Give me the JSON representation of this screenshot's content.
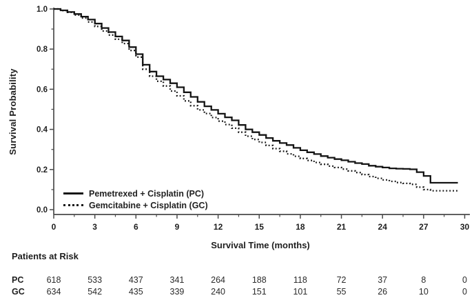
{
  "chart_data": {
    "type": "line",
    "subtype": "kaplan-meier-step",
    "title": "",
    "xlabel": "Survival Time (months)",
    "ylabel": "Survival Probability",
    "xlim": [
      0,
      30
    ],
    "ylim": [
      0.0,
      1.0
    ],
    "grid": "off",
    "axis_color": "#4a4a4a",
    "curve_color": "#141414",
    "xticks": {
      "major": [
        {
          "value": 0,
          "label": "0"
        },
        {
          "value": 3,
          "label": "3"
        },
        {
          "value": 6,
          "label": "6"
        },
        {
          "value": 9,
          "label": "9"
        },
        {
          "value": 12,
          "label": "12"
        },
        {
          "value": 15,
          "label": "15"
        },
        {
          "value": 18,
          "label": "18"
        },
        {
          "value": 21,
          "label": "21"
        },
        {
          "value": 24,
          "label": "24"
        },
        {
          "value": 27,
          "label": "27"
        },
        {
          "value": 30,
          "label": "30"
        }
      ],
      "minor": [
        1.5,
        4.5,
        7.5,
        10.5,
        13.5,
        16.5,
        19.5,
        22.5,
        25.5,
        28.5
      ]
    },
    "yticks": {
      "major": [
        {
          "value": 1.0,
          "label": "1.0"
        },
        {
          "value": 0.8,
          "label": "0.8"
        },
        {
          "value": 0.6,
          "label": "0.6"
        },
        {
          "value": 0.4,
          "label": "0.4"
        },
        {
          "value": 0.2,
          "label": "0.2"
        },
        {
          "value": 0.0,
          "label": "0.0"
        }
      ],
      "minor": [
        0.1,
        0.3,
        0.5,
        0.7,
        0.9
      ]
    },
    "x_months": [
      0,
      0.5,
      1,
      1.5,
      2,
      2.5,
      3,
      3.5,
      4,
      4.5,
      5,
      5.5,
      6,
      6.5,
      7,
      7.5,
      8,
      8.5,
      9,
      9.5,
      10,
      10.5,
      11,
      11.5,
      12,
      12.5,
      13,
      13.5,
      14,
      14.5,
      15,
      15.5,
      16,
      16.5,
      17,
      17.5,
      18,
      18.5,
      19,
      19.5,
      20,
      20.5,
      21,
      21.5,
      22,
      22.5,
      23,
      23.5,
      24,
      24.5,
      25,
      25.5,
      26,
      26.5,
      27,
      27.5,
      28,
      28.5,
      29,
      29.5
    ],
    "series": [
      {
        "name": "Pemetrexed + Cisplatin (PC)",
        "short": "PC",
        "line_style": "solid",
        "values": [
          1.0,
          0.993,
          0.985,
          0.975,
          0.962,
          0.947,
          0.927,
          0.905,
          0.885,
          0.863,
          0.843,
          0.81,
          0.775,
          0.722,
          0.688,
          0.665,
          0.648,
          0.63,
          0.61,
          0.585,
          0.562,
          0.537,
          0.515,
          0.497,
          0.478,
          0.46,
          0.445,
          0.422,
          0.4,
          0.386,
          0.372,
          0.357,
          0.343,
          0.332,
          0.322,
          0.308,
          0.296,
          0.286,
          0.277,
          0.267,
          0.259,
          0.252,
          0.246,
          0.239,
          0.232,
          0.227,
          0.219,
          0.214,
          0.21,
          0.206,
          0.204,
          0.203,
          0.201,
          0.187,
          0.168,
          0.134,
          0.134,
          0.134,
          0.134,
          0.134
        ]
      },
      {
        "name": "Gemcitabine + Cisplatin (GC)",
        "short": "GC",
        "line_style": "dotted",
        "values": [
          1.0,
          0.992,
          0.983,
          0.97,
          0.955,
          0.935,
          0.913,
          0.89,
          0.87,
          0.849,
          0.828,
          0.793,
          0.76,
          0.7,
          0.665,
          0.64,
          0.616,
          0.591,
          0.567,
          0.542,
          0.518,
          0.497,
          0.479,
          0.459,
          0.441,
          0.424,
          0.406,
          0.386,
          0.366,
          0.35,
          0.335,
          0.32,
          0.304,
          0.291,
          0.278,
          0.266,
          0.255,
          0.245,
          0.235,
          0.226,
          0.217,
          0.21,
          0.202,
          0.193,
          0.185,
          0.175,
          0.165,
          0.156,
          0.148,
          0.141,
          0.135,
          0.131,
          0.126,
          0.112,
          0.1,
          0.094,
          0.094,
          0.094,
          0.094,
          0.094
        ]
      }
    ],
    "legend": {
      "position": "lower-left-inside",
      "items": [
        {
          "label": "Pemetrexed + Cisplatin (PC)",
          "line_style": "solid"
        },
        {
          "label": "Gemcitabine + Cisplatin (GC)",
          "line_style": "dotted"
        }
      ]
    }
  },
  "risk_table": {
    "heading": "Patients at Risk",
    "time_points": [
      0,
      3,
      6,
      9,
      12,
      15,
      18,
      21,
      24,
      27,
      30
    ],
    "rows": [
      {
        "label": "PC",
        "counts": [
          618,
          533,
          437,
          341,
          264,
          188,
          118,
          72,
          37,
          8,
          0
        ]
      },
      {
        "label": "GC",
        "counts": [
          634,
          542,
          435,
          339,
          240,
          151,
          101,
          55,
          26,
          10,
          0
        ]
      }
    ]
  }
}
